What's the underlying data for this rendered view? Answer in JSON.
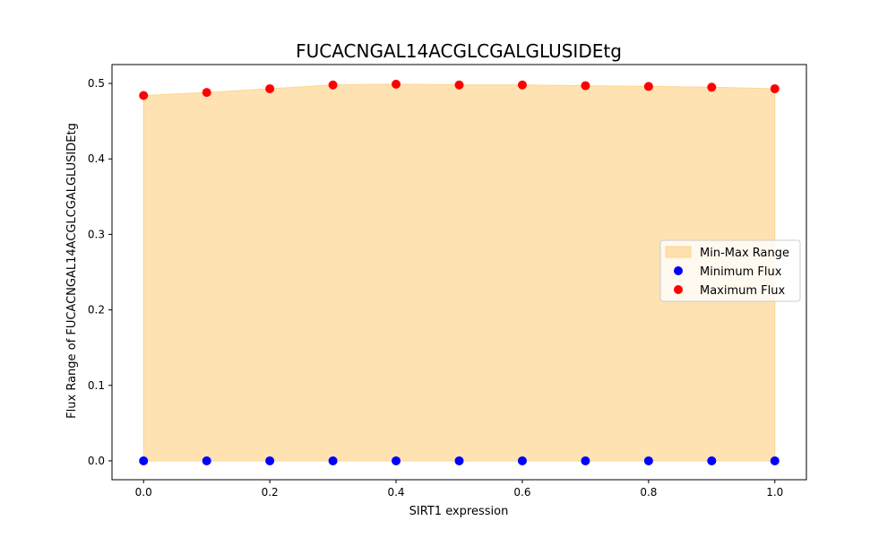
{
  "chart_data": {
    "type": "scatter",
    "title": "FUCACNGAL14ACGLCGALGLUSIDEtg",
    "xlabel": "SIRT1 expression",
    "ylabel": "Flux Range of FUCACNGAL14ACGLCGALGLUSIDEtg",
    "xlim": [
      -0.05,
      1.05
    ],
    "ylim": [
      -0.025,
      0.525
    ],
    "xticks": [
      0.0,
      0.2,
      0.4,
      0.6,
      0.8,
      1.0
    ],
    "yticks": [
      0.0,
      0.1,
      0.2,
      0.3,
      0.4,
      0.5
    ],
    "x": [
      0.0,
      0.1,
      0.2,
      0.3,
      0.4,
      0.5,
      0.6,
      0.7,
      0.8,
      0.9,
      1.0
    ],
    "series": [
      {
        "name": "Minimum Flux",
        "color": "#0000ff",
        "values": [
          0,
          0,
          0,
          0,
          0,
          0,
          0,
          0,
          0,
          0,
          0
        ]
      },
      {
        "name": "Maximum Flux",
        "color": "#ff0000",
        "values": [
          0.484,
          0.488,
          0.493,
          0.498,
          0.499,
          0.498,
          0.498,
          0.497,
          0.496,
          0.495,
          0.493
        ]
      }
    ],
    "fill": {
      "name": "Min-Max Range",
      "color": "#fdd592",
      "opacity": 0.7
    },
    "legend_position": "center-right",
    "grid": false
  }
}
